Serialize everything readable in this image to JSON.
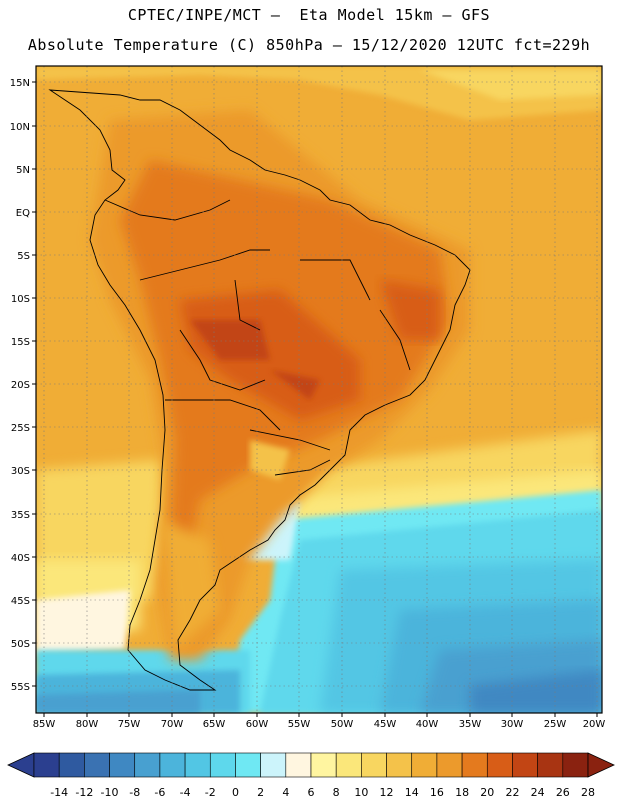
{
  "header": {
    "line1": "CPTEC/INPE/MCT –  Eta Model 15km – GFS",
    "line2": "Absolute Temperature (C) 850hPa – 15/12/2020 12UTC fct=229h"
  },
  "map": {
    "lat_labels": [
      "15N",
      "10N",
      "5N",
      "EQ",
      "5S",
      "10S",
      "15S",
      "20S",
      "25S",
      "30S",
      "35S",
      "40S",
      "45S",
      "50S",
      "55S"
    ],
    "lon_labels": [
      "85W",
      "80W",
      "75W",
      "70W",
      "65W",
      "60W",
      "55W",
      "50W",
      "45W",
      "40W",
      "35W",
      "30W",
      "25W",
      "20W"
    ]
  },
  "colorbar": {
    "labels": [
      "-14",
      "-12",
      "-10",
      "-8",
      "-6",
      "-4",
      "-2",
      "0",
      "2",
      "4",
      "6",
      "8",
      "10",
      "12",
      "14",
      "16",
      "18",
      "20",
      "22",
      "24",
      "26",
      "28"
    ],
    "colors": [
      "#2b3f8f",
      "#2f5aa0",
      "#3a72b2",
      "#3f88c2",
      "#48a0d0",
      "#4cb4db",
      "#52c6e4",
      "#5ed8ec",
      "#6fe8f3",
      "#ccf4fb",
      "#fff6e0",
      "#fff5a0",
      "#fbe77a",
      "#f8d660",
      "#f4c24a",
      "#f0ad36",
      "#ec9a2c",
      "#e47a1e",
      "#d85d17",
      "#c24514",
      "#a83412",
      "#8a2210"
    ]
  }
}
